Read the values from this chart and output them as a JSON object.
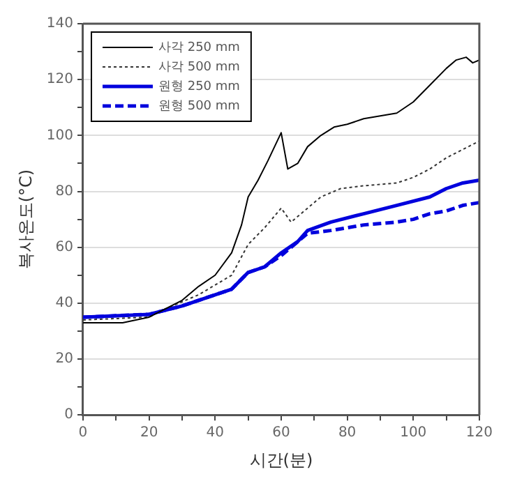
{
  "chart_data": {
    "type": "line",
    "xlabel": "시간(분)",
    "ylabel": "복사온도(°C)",
    "xlim": [
      0,
      120
    ],
    "ylim": [
      0,
      140
    ],
    "xticks": [
      0,
      {
        "value": 10,
        "label": null
      },
      20,
      {
        "value": 30,
        "label": null
      },
      40,
      {
        "value": 50,
        "label": null
      },
      60,
      {
        "value": 70,
        "label": null
      },
      80,
      {
        "value": 90,
        "label": null
      },
      100,
      {
        "value": 110,
        "label": null
      },
      120
    ],
    "yticks": [
      0,
      {
        "value": 10,
        "label": null
      },
      20,
      {
        "value": 30,
        "label": null
      },
      40,
      {
        "value": 50,
        "label": null
      },
      60,
      {
        "value": 70,
        "label": null
      },
      80,
      {
        "value": 90,
        "label": null
      },
      100,
      {
        "value": 110,
        "label": null
      },
      120,
      {
        "value": 130,
        "label": null
      },
      140
    ],
    "grid": "y",
    "legend": "top left",
    "marker": "none",
    "series": [
      {
        "name": "사각 250 mm",
        "color": "#000000",
        "line_style": "solid",
        "x": [
          0,
          12,
          20,
          25,
          30,
          35,
          40,
          45,
          48,
          50,
          53,
          56,
          60,
          62,
          65,
          68,
          72,
          76,
          80,
          85,
          90,
          95,
          100,
          105,
          110,
          113,
          116,
          118,
          120
        ],
        "values": [
          33,
          33,
          35,
          38,
          41,
          46,
          50,
          58,
          68,
          78,
          84,
          91,
          101,
          88,
          90,
          96,
          100,
          103,
          104,
          106,
          107,
          108,
          112,
          118,
          124,
          127,
          128,
          126,
          127
        ]
      },
      {
        "name": "사각 500 mm",
        "color": "#333333",
        "line_style": "dotted",
        "x": [
          0,
          20,
          25,
          35,
          45,
          50,
          55,
          60,
          63,
          67,
          72,
          78,
          85,
          95,
          100,
          105,
          110,
          115,
          120
        ],
        "values": [
          34,
          35,
          38,
          43,
          50,
          61,
          67,
          74,
          69,
          73,
          78,
          81,
          82,
          83,
          85,
          88,
          92,
          95,
          98
        ]
      },
      {
        "name": "원형 250 mm",
        "color": "#0000dd",
        "line_style": "solid",
        "x": [
          0,
          20,
          30,
          40,
          45,
          50,
          55,
          60,
          65,
          68,
          75,
          85,
          95,
          105,
          110,
          115,
          120
        ],
        "values": [
          35,
          36,
          39,
          43,
          45,
          51,
          53,
          58,
          62,
          66,
          69,
          72,
          75,
          78,
          81,
          83,
          84
        ]
      },
      {
        "name": "원형 500 mm",
        "color": "#0000dd",
        "line_style": "dashed",
        "x": [
          0,
          20,
          30,
          40,
          45,
          50,
          55,
          60,
          65,
          68,
          75,
          85,
          95,
          100,
          105,
          110,
          115,
          120
        ],
        "values": [
          35,
          36,
          39,
          43,
          45,
          51,
          53,
          57,
          62,
          65,
          66,
          68,
          69,
          70,
          72,
          73,
          75,
          76
        ]
      }
    ]
  }
}
